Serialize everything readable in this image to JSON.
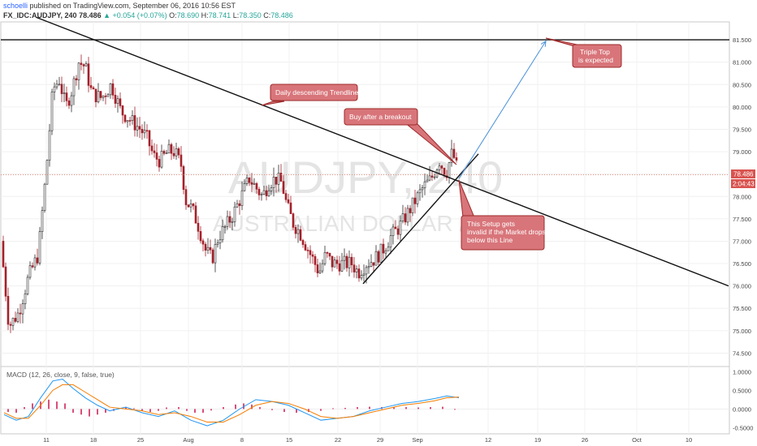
{
  "header": {
    "author": "schoelli",
    "published": "published on TradingView.com, September 06, 2016 10:56 EST",
    "symbol": "FX_IDC:AUDJPY, 240",
    "last": "78.486",
    "change": "▲ +0.054 (+0.07%)",
    "o_label": "O:",
    "o_value": "78.690",
    "h_label": "H:",
    "h_value": "78.741",
    "l_label": "L:",
    "l_value": "78.350",
    "c_label": "C:",
    "c_value": "78.486"
  },
  "watermark": {
    "symbol": "AUDJPY, 240",
    "name": "AUSTRALIAN DOLLAR / YEN"
  },
  "price_tags": {
    "last": "78.486",
    "countdown": "2:04:43"
  },
  "annotations": {
    "trendline": "Daily descending Trendline",
    "buy": "Buy after a breakout",
    "triple_top_1": "Triple Top",
    "triple_top_2": "is expected",
    "invalid_1": "This Setup gets",
    "invalid_2": "invalid if the Market drops",
    "invalid_3": "below this Line"
  },
  "macd_label": "MACD (12, 26, close, 9, false, true)",
  "colors": {
    "up": "#2d2d2d",
    "down": "#a3212a",
    "macd_line": "#2196f3",
    "signal_line": "#f57c00",
    "histogram": "#d94f7a",
    "callout_fill": "#d8757a",
    "callout_border": "#9e2a2b",
    "projection": "#4a90d9"
  },
  "chart_data": [
    {
      "type": "candlestick",
      "x_ticks": [
        "11",
        "18",
        "25",
        "Aug",
        "8",
        "15",
        "22",
        "29",
        "Sep",
        "12",
        "19",
        "26",
        "Oct",
        "10"
      ],
      "y_ticks": [
        "81.500",
        "81.000",
        "80.500",
        "80.000",
        "79.500",
        "79.000",
        "78.500",
        "78.000",
        "77.500",
        "77.000",
        "76.500",
        "76.000",
        "75.500",
        "75.000",
        "74.500"
      ],
      "ylim": [
        74.2,
        81.9
      ],
      "close_path": [
        [
          0,
          77.0
        ],
        [
          10,
          75.1
        ],
        [
          22,
          75.4
        ],
        [
          34,
          76.2
        ],
        [
          46,
          76.7
        ],
        [
          56,
          78.6
        ],
        [
          64,
          80.4
        ],
        [
          72,
          80.6
        ],
        [
          80,
          80.0
        ],
        [
          88,
          80.4
        ],
        [
          96,
          81.0
        ],
        [
          104,
          80.9
        ],
        [
          112,
          80.3
        ],
        [
          124,
          80.2
        ],
        [
          136,
          80.5
        ],
        [
          148,
          79.9
        ],
        [
          160,
          79.7
        ],
        [
          172,
          79.5
        ],
        [
          180,
          79.3
        ],
        [
          188,
          78.9
        ],
        [
          196,
          78.8
        ],
        [
          206,
          79.0
        ],
        [
          214,
          79.0
        ],
        [
          222,
          78.7
        ],
        [
          228,
          77.9
        ],
        [
          236,
          77.7
        ],
        [
          244,
          77.3
        ],
        [
          252,
          76.8
        ],
        [
          260,
          76.6
        ],
        [
          268,
          77.1
        ],
        [
          276,
          77.3
        ],
        [
          286,
          77.6
        ],
        [
          296,
          78.0
        ],
        [
          306,
          78.4
        ],
        [
          314,
          78.2
        ],
        [
          322,
          78.0
        ],
        [
          330,
          78.3
        ],
        [
          338,
          78.4
        ],
        [
          346,
          78.3
        ],
        [
          352,
          77.8
        ],
        [
          360,
          77.4
        ],
        [
          368,
          77.2
        ],
        [
          376,
          76.9
        ],
        [
          384,
          76.6
        ],
        [
          392,
          76.3
        ],
        [
          400,
          76.7
        ],
        [
          408,
          76.5
        ],
        [
          416,
          76.5
        ],
        [
          424,
          76.5
        ],
        [
          432,
          76.5
        ],
        [
          440,
          76.3
        ],
        [
          450,
          76.5
        ],
        [
          460,
          76.6
        ],
        [
          470,
          76.8
        ],
        [
          480,
          77.1
        ],
        [
          490,
          77.3
        ],
        [
          500,
          77.6
        ],
        [
          510,
          77.9
        ],
        [
          520,
          78.2
        ],
        [
          530,
          78.4
        ],
        [
          540,
          78.8
        ],
        [
          548,
          78.5
        ],
        [
          556,
          79.0
        ],
        [
          562,
          78.6
        ]
      ],
      "horizontal_level": 81.5,
      "current_price": 78.486,
      "descending_trendline": [
        [
          45,
          82.0
        ],
        [
          897,
          76.0
        ]
      ],
      "ascending_trendline": [
        [
          447,
          76.05
        ],
        [
          589,
          78.95
        ]
      ],
      "projection": [
        [
          565,
          78.4
        ],
        [
          672,
          81.47
        ]
      ]
    },
    {
      "type": "line",
      "title": "MACD (12, 26, close, 9, false, true)",
      "y_ticks": [
        "1.0000",
        "0.5000",
        "0.0000",
        "-0.5000"
      ],
      "ylim": [
        -0.6,
        1.05
      ],
      "series": [
        {
          "values": [
            [
              0,
              -0.15
            ],
            [
              15,
              -0.3
            ],
            [
              30,
              -0.2
            ],
            [
              45,
              0.3
            ],
            [
              60,
              0.75
            ],
            [
              72,
              0.8
            ],
            [
              85,
              0.55
            ],
            [
              100,
              0.3
            ],
            [
              115,
              0.1
            ],
            [
              130,
              -0.05
            ],
            [
              150,
              0.05
            ],
            [
              170,
              -0.1
            ],
            [
              190,
              -0.2
            ],
            [
              210,
              -0.05
            ],
            [
              230,
              -0.3
            ],
            [
              250,
              -0.45
            ],
            [
              270,
              -0.3
            ],
            [
              290,
              0.0
            ],
            [
              310,
              0.25
            ],
            [
              330,
              0.2
            ],
            [
              350,
              0.1
            ],
            [
              370,
              -0.1
            ],
            [
              390,
              -0.3
            ],
            [
              410,
              -0.25
            ],
            [
              430,
              -0.2
            ],
            [
              450,
              -0.05
            ],
            [
              470,
              0.05
            ],
            [
              490,
              0.15
            ],
            [
              510,
              0.2
            ],
            [
              530,
              0.28
            ],
            [
              545,
              0.35
            ],
            [
              560,
              0.3
            ]
          ]
        },
        {
          "values": [
            [
              0,
              -0.1
            ],
            [
              15,
              -0.25
            ],
            [
              30,
              -0.25
            ],
            [
              45,
              0.1
            ],
            [
              60,
              0.5
            ],
            [
              72,
              0.65
            ],
            [
              85,
              0.65
            ],
            [
              100,
              0.45
            ],
            [
              115,
              0.25
            ],
            [
              130,
              0.05
            ],
            [
              150,
              0.0
            ],
            [
              170,
              -0.05
            ],
            [
              190,
              -0.15
            ],
            [
              210,
              -0.1
            ],
            [
              230,
              -0.2
            ],
            [
              250,
              -0.35
            ],
            [
              270,
              -0.35
            ],
            [
              290,
              -0.15
            ],
            [
              310,
              0.1
            ],
            [
              330,
              0.2
            ],
            [
              350,
              0.15
            ],
            [
              370,
              0.0
            ],
            [
              390,
              -0.2
            ],
            [
              410,
              -0.25
            ],
            [
              430,
              -0.2
            ],
            [
              450,
              -0.1
            ],
            [
              470,
              0.0
            ],
            [
              490,
              0.1
            ],
            [
              510,
              0.15
            ],
            [
              530,
              0.22
            ],
            [
              545,
              0.3
            ],
            [
              560,
              0.32
            ]
          ]
        }
      ],
      "histogram": [
        [
          5,
          -0.08
        ],
        [
          15,
          -0.1
        ],
        [
          25,
          0.05
        ],
        [
          35,
          0.15
        ],
        [
          45,
          0.2
        ],
        [
          55,
          0.25
        ],
        [
          65,
          0.2
        ],
        [
          75,
          0.15
        ],
        [
          85,
          -0.1
        ],
        [
          95,
          -0.15
        ],
        [
          105,
          -0.2
        ],
        [
          115,
          -0.15
        ],
        [
          125,
          -0.1
        ],
        [
          135,
          -0.05
        ],
        [
          150,
          0.05
        ],
        [
          160,
          0.02
        ],
        [
          170,
          -0.05
        ],
        [
          180,
          -0.08
        ],
        [
          190,
          -0.05
        ],
        [
          200,
          0.04
        ],
        [
          215,
          0.05
        ],
        [
          225,
          -0.05
        ],
        [
          235,
          -0.1
        ],
        [
          245,
          -0.1
        ],
        [
          255,
          -0.04
        ],
        [
          270,
          0.05
        ],
        [
          285,
          0.12
        ],
        [
          295,
          0.15
        ],
        [
          305,
          0.12
        ],
        [
          315,
          0.05
        ],
        [
          330,
          -0.03
        ],
        [
          345,
          -0.08
        ],
        [
          360,
          -0.1
        ],
        [
          375,
          -0.08
        ],
        [
          390,
          -0.05
        ],
        [
          405,
          0.02
        ],
        [
          420,
          0.03
        ],
        [
          435,
          0.05
        ],
        [
          450,
          0.06
        ],
        [
          465,
          0.05
        ],
        [
          480,
          0.04
        ],
        [
          495,
          0.05
        ],
        [
          510,
          0.04
        ],
        [
          525,
          0.05
        ],
        [
          540,
          0.06
        ],
        [
          555,
          -0.02
        ]
      ]
    }
  ]
}
